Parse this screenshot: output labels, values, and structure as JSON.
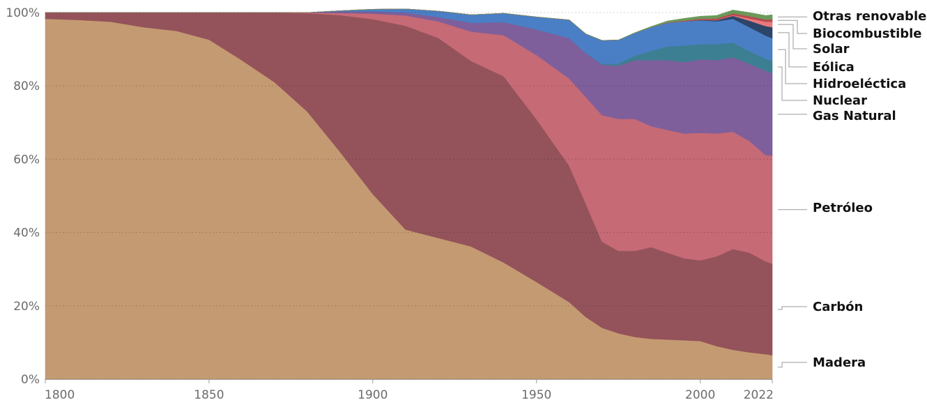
{
  "chart_data": {
    "type": "area",
    "stacking": "percent",
    "x": [
      1800,
      1810,
      1820,
      1830,
      1840,
      1850,
      1860,
      1870,
      1880,
      1890,
      1900,
      1910,
      1920,
      1930,
      1940,
      1950,
      1960,
      1965,
      1970,
      1975,
      1980,
      1985,
      1990,
      1995,
      2000,
      2005,
      2010,
      2015,
      2020,
      2022
    ],
    "series": [
      {
        "name": "Madera",
        "color": "#c49a72",
        "values": [
          98.3,
          98.0,
          97.5,
          96.0,
          95.0,
          92.6,
          87.0,
          81.0,
          73.0,
          62.0,
          50.5,
          40.8,
          38.5,
          36.2,
          31.8,
          26.5,
          21.0,
          17.0,
          14.0,
          12.5,
          11.5,
          11.0,
          10.8,
          10.6,
          10.4,
          9.0,
          8.0,
          7.3,
          6.8,
          6.5
        ]
      },
      {
        "name": "Carbón",
        "color": "#94535a",
        "values": [
          1.7,
          2.0,
          2.5,
          4.0,
          5.0,
          7.4,
          13.0,
          19.0,
          26.8,
          37.3,
          47.7,
          55.6,
          54.6,
          50.6,
          50.8,
          44.4,
          37.2,
          31.0,
          23.5,
          22.5,
          23.5,
          25.0,
          23.7,
          22.4,
          22.0,
          24.5,
          27.5,
          27.2,
          25.3,
          25.0
        ]
      },
      {
        "name": "Petróleo",
        "color": "#c66a76",
        "values": [
          0,
          0,
          0,
          0,
          0,
          0,
          0,
          0,
          0.2,
          0.6,
          1.5,
          2.8,
          4.5,
          8.0,
          11.2,
          17.5,
          23.8,
          29.0,
          34.5,
          36.0,
          36.0,
          33.0,
          33.5,
          34.0,
          34.8,
          33.5,
          32.0,
          30.5,
          29.0,
          29.5
        ]
      },
      {
        "name": "Gas Natural",
        "color": "#7f5f9b",
        "values": [
          0,
          0,
          0,
          0,
          0,
          0,
          0,
          0,
          0,
          0.4,
          0.6,
          0.8,
          1.2,
          2.4,
          3.6,
          7.0,
          11.0,
          12.0,
          13.8,
          14.5,
          16.0,
          18.0,
          19.0,
          19.5,
          20.0,
          20.0,
          20.3,
          21.0,
          23.0,
          22.5
        ]
      },
      {
        "name": "Nuclear",
        "color": "#3d7f92",
        "values": [
          0,
          0,
          0,
          0,
          0,
          0,
          0,
          0,
          0,
          0,
          0,
          0,
          0,
          0,
          0,
          0,
          0,
          0,
          0.2,
          0.6,
          1.2,
          2.5,
          3.8,
          4.5,
          4.2,
          4.4,
          4.0,
          3.5,
          3.3,
          3.3
        ]
      },
      {
        "name": "Hidroeléctica",
        "color": "#4a7fc6",
        "values": [
          0,
          0,
          0,
          0,
          0,
          0,
          0,
          0,
          0,
          0.2,
          0.6,
          1.0,
          1.6,
          2.2,
          2.4,
          3.4,
          5.0,
          5.2,
          6.4,
          6.4,
          6.2,
          6.5,
          6.4,
          6.6,
          6.5,
          6.2,
          6.5,
          6.5,
          6.3,
          6.2
        ]
      },
      {
        "name": "Eólica",
        "color": "#2c4568",
        "values": [
          0,
          0,
          0,
          0,
          0,
          0,
          0,
          0,
          0,
          0,
          0,
          0,
          0,
          0,
          0,
          0,
          0,
          0,
          0,
          0,
          0,
          0,
          0,
          0,
          0.1,
          0.3,
          0.8,
          1.8,
          2.6,
          3.0
        ]
      },
      {
        "name": "Solar",
        "color": "#e8797c",
        "values": [
          0,
          0,
          0,
          0,
          0,
          0,
          0,
          0,
          0,
          0,
          0,
          0,
          0,
          0,
          0,
          0,
          0,
          0,
          0,
          0,
          0,
          0,
          0,
          0,
          0,
          0.1,
          0.2,
          0.6,
          1.2,
          1.5
        ]
      },
      {
        "name": "Biocombustible",
        "color": "#b94a4e",
        "values": [
          0,
          0,
          0,
          0,
          0,
          0,
          0,
          0,
          0,
          0,
          0,
          0,
          0,
          0,
          0,
          0,
          0,
          0,
          0,
          0,
          0,
          0,
          0.1,
          0.2,
          0.3,
          0.4,
          0.5,
          0.6,
          0.6,
          0.7
        ]
      },
      {
        "name": "Otras renovables",
        "color": "#6b9a5a",
        "values": [
          0,
          0,
          0,
          0,
          0,
          0,
          0,
          0,
          0,
          0,
          0,
          0,
          0,
          0,
          0,
          0,
          0,
          0,
          0,
          0,
          0.1,
          0.2,
          0.4,
          0.6,
          0.7,
          0.8,
          0.9,
          1.0,
          1.1,
          1.2
        ]
      }
    ],
    "xticks": [
      1800,
      1850,
      1900,
      1950,
      2000,
      2022
    ],
    "yticks": [
      "0%",
      "20%",
      "40%",
      "60%",
      "80%",
      "100%"
    ],
    "ylim": [
      0,
      100
    ],
    "xlim": [
      1800,
      2022
    ],
    "grid": "horizontal dotted",
    "legend": "right, labels at series end",
    "title": "",
    "xlabel": "",
    "ylabel": ""
  }
}
